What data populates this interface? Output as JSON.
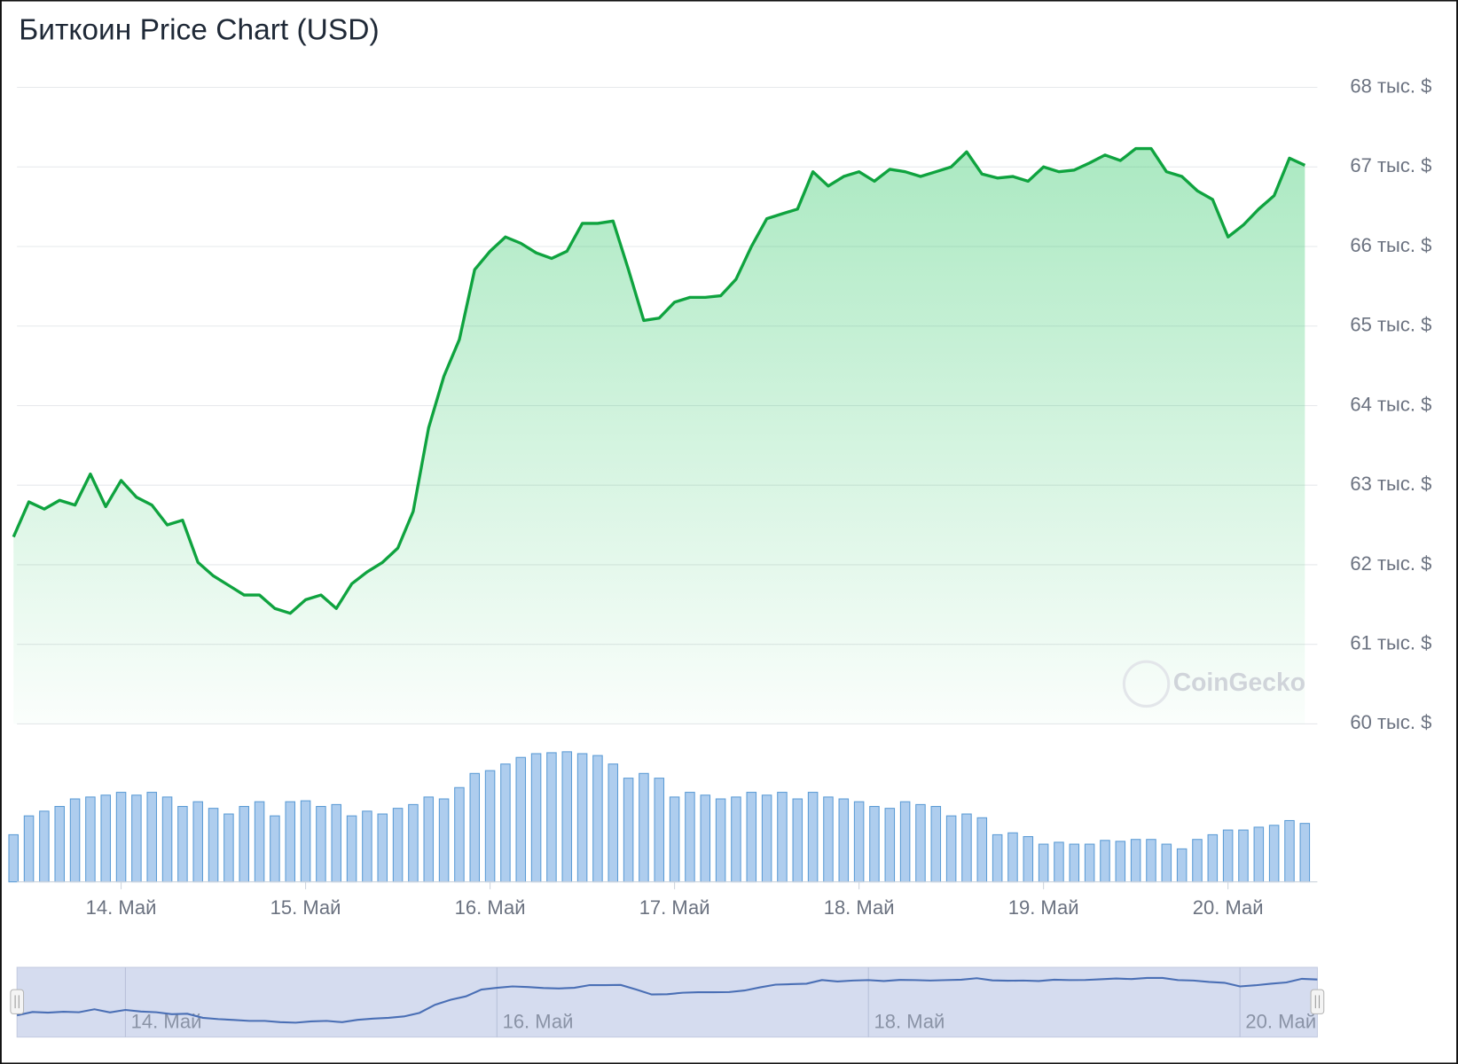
{
  "chart_data": {
    "type": "line",
    "title": "Биткоин Price Chart (USD)",
    "watermark": "CoinGecko",
    "color": "#0fa33f",
    "volume_color": "#5b9bd5",
    "navigator_color": "#4a6fb5",
    "grid": true,
    "ylim": [
      60000,
      68000
    ],
    "yticks": [
      {
        "value": 60000,
        "label": "60 тыс. $"
      },
      {
        "value": 61000,
        "label": "61 тыс. $"
      },
      {
        "value": 62000,
        "label": "62 тыс. $"
      },
      {
        "value": 63000,
        "label": "63 тыс. $"
      },
      {
        "value": 64000,
        "label": "64 тыс. $"
      },
      {
        "value": 65000,
        "label": "65 тыс. $"
      },
      {
        "value": 66000,
        "label": "66 тыс. $"
      },
      {
        "value": 67000,
        "label": "67 тыс. $"
      },
      {
        "value": 68000,
        "label": "68 тыс. $"
      }
    ],
    "categories": [
      null,
      null,
      null,
      null,
      null,
      null,
      null,
      "14. Май",
      null,
      null,
      null,
      null,
      null,
      null,
      null,
      null,
      null,
      null,
      null,
      "15. Май",
      null,
      null,
      null,
      null,
      null,
      null,
      null,
      null,
      null,
      null,
      null,
      "16. Май",
      null,
      null,
      null,
      null,
      null,
      null,
      null,
      null,
      null,
      null,
      null,
      "17. Май",
      null,
      null,
      null,
      null,
      null,
      null,
      null,
      null,
      null,
      null,
      null,
      "18. Май",
      null,
      null,
      null,
      null,
      null,
      null,
      null,
      null,
      null,
      null,
      null,
      "19. Май",
      null,
      null,
      null,
      null,
      null,
      null,
      null,
      null,
      null,
      null,
      null,
      "20. Май",
      null,
      null,
      null,
      null,
      null
    ],
    "navigator_ticks": [
      7,
      31,
      55,
      79
    ],
    "values": [
      62350,
      62790,
      62700,
      62810,
      62750,
      63140,
      62730,
      63060,
      62850,
      62750,
      62500,
      62560,
      62030,
      61860,
      61740,
      61620,
      61620,
      61450,
      61390,
      61560,
      61620,
      61450,
      61760,
      61910,
      62030,
      62210,
      62670,
      63720,
      64370,
      64830,
      65710,
      65940,
      66120,
      66040,
      65920,
      65850,
      65940,
      66290,
      66290,
      66320,
      65710,
      65070,
      65100,
      65300,
      65360,
      65360,
      65380,
      65590,
      66000,
      66350,
      66410,
      66470,
      66940,
      66760,
      66880,
      66940,
      66820,
      66970,
      66940,
      66880,
      66940,
      67000,
      67190,
      66910,
      66860,
      66880,
      66820,
      67000,
      66940,
      66960,
      67050,
      67150,
      67080,
      67230,
      67230,
      66940,
      66880,
      66700,
      66590,
      66120,
      66270,
      66470,
      66640,
      67110,
      67020
    ],
    "volumes": [
      50,
      70,
      75,
      80,
      88,
      90,
      92,
      95,
      92,
      95,
      90,
      80,
      85,
      78,
      72,
      80,
      85,
      70,
      85,
      86,
      80,
      82,
      70,
      75,
      72,
      78,
      82,
      90,
      88,
      100,
      115,
      118,
      125,
      132,
      136,
      137,
      138,
      136,
      134,
      125,
      110,
      115,
      110,
      90,
      95,
      92,
      88,
      90,
      95,
      92,
      95,
      88,
      95,
      90,
      88,
      85,
      80,
      78,
      85,
      82,
      80,
      70,
      72,
      68,
      50,
      52,
      48,
      40,
      42,
      40,
      40,
      44,
      43,
      45,
      45,
      40,
      35,
      45,
      50,
      55,
      55,
      58,
      60,
      65,
      62
    ]
  }
}
